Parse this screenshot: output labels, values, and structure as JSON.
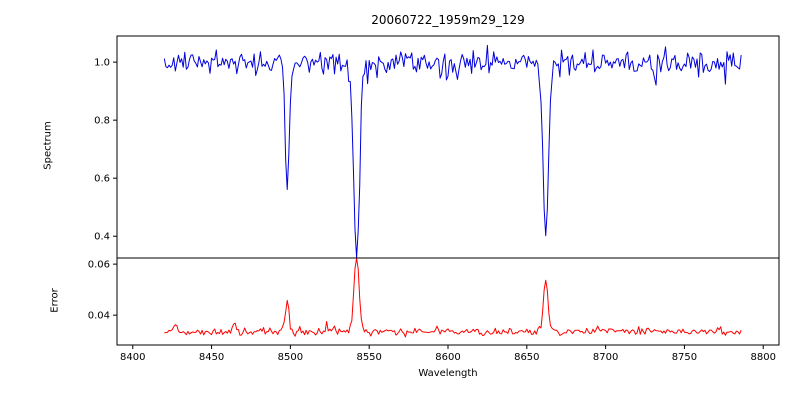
{
  "chart_data": {
    "type": "line",
    "title": "20060722_1959m29_129",
    "xlabel": "Wavelength",
    "xlim": [
      8390,
      8810
    ],
    "xticks": [
      {
        "value": 8400,
        "label": "8400"
      },
      {
        "value": 8450,
        "label": "8450"
      },
      {
        "value": 8500,
        "label": "8500"
      },
      {
        "value": 8550,
        "label": "8550"
      },
      {
        "value": 8600,
        "label": "8600"
      },
      {
        "value": 8650,
        "label": "8650"
      },
      {
        "value": 8700,
        "label": "8700"
      },
      {
        "value": 8750,
        "label": "8750"
      },
      {
        "value": 8800,
        "label": "8800"
      }
    ],
    "seed": 1337,
    "panels": [
      {
        "ylabel": "Spectrum",
        "ylim": [
          0.325,
          1.09
        ],
        "yticks": [
          {
            "value": 0.4,
            "label": "0.4"
          },
          {
            "value": 0.6,
            "label": "0.6"
          },
          {
            "value": 0.8,
            "label": "0.8"
          },
          {
            "value": 1.0,
            "label": "1.0"
          }
        ],
        "color": "#0000dd",
        "series": {
          "kind": "noisy-continuum",
          "x_start": 8420,
          "x_end": 8786,
          "x_step": 1,
          "continuum": 1.0,
          "noise_sigma": 0.018,
          "dip_probability": 0.1,
          "dip_max": 0.07,
          "absorption_lines": [
            {
              "center": 8498,
              "depth": 0.44,
              "sigma": 1.3
            },
            {
              "center": 8542,
              "depth": 0.65,
              "sigma": 1.9
            },
            {
              "center": 8662,
              "depth": 0.61,
              "sigma": 1.7
            }
          ]
        }
      },
      {
        "ylabel": "Error",
        "ylim": [
          0.0283,
          0.0624
        ],
        "yticks": [
          {
            "value": 0.04,
            "label": "0.04"
          },
          {
            "value": 0.06,
            "label": "0.06"
          }
        ],
        "color": "#ff0000",
        "series": {
          "kind": "noisy-baseline",
          "x_start": 8420,
          "x_end": 8786,
          "x_step": 1,
          "baseline": 0.0335,
          "noise_sigma": 0.0007,
          "spike_probability": 0.08,
          "spike_max": 0.002,
          "peaks": [
            {
              "center": 8427,
              "amp": 0.003,
              "sigma": 1.2
            },
            {
              "center": 8464,
              "amp": 0.0025,
              "sigma": 1.0
            },
            {
              "center": 8498,
              "amp": 0.0125,
              "sigma": 1.2
            },
            {
              "center": 8542,
              "amp": 0.0285,
              "sigma": 1.6
            },
            {
              "center": 8662,
              "amp": 0.0205,
              "sigma": 1.4
            }
          ]
        }
      }
    ]
  }
}
